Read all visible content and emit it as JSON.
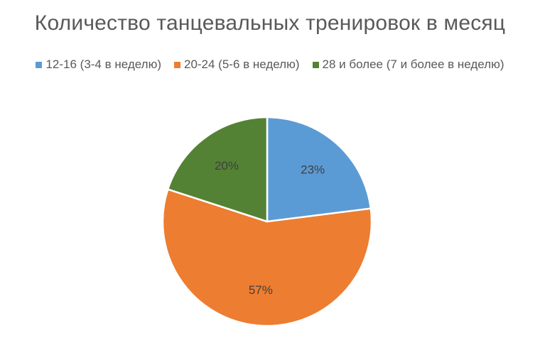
{
  "chart_data": {
    "type": "pie",
    "title": "Количество танцевальных тренировок в месяц",
    "legend_position": "top",
    "slices": [
      {
        "label": "12-16 (3-4 в неделю)",
        "value": 23,
        "value_label": "23%",
        "color": "#5B9BD5"
      },
      {
        "label": "20-24 (5-6 в неделю)",
        "value": 57,
        "value_label": "57%",
        "color": "#ED7D31"
      },
      {
        "label": "28 и более (7 и более в неделю)",
        "value": 20,
        "value_label": "20%",
        "color": "#548235"
      }
    ]
  }
}
